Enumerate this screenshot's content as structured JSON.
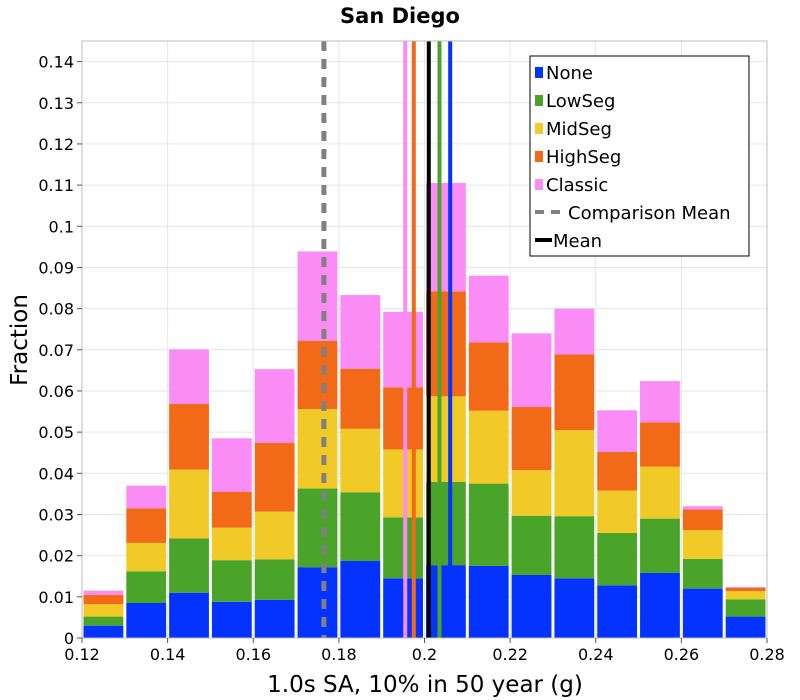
{
  "chart_data": {
    "type": "bar",
    "stacked": true,
    "title": "San Diego",
    "xlabel": "1.0s SA, 10% in 50 year (g)",
    "ylabel": "Fraction",
    "xlim": [
      0.12,
      0.28
    ],
    "ylim": [
      0,
      0.145
    ],
    "grid": true,
    "legend_position": "top-right",
    "x_ticks": [
      "0.12",
      "0.14",
      "0.16",
      "0.18",
      "0.2",
      "0.22",
      "0.24",
      "0.26",
      "0.28"
    ],
    "y_ticks": [
      "0",
      "0.01",
      "0.02",
      "0.03",
      "0.04",
      "0.05",
      "0.06",
      "0.07",
      "0.08",
      "0.09",
      "0.1",
      "0.11",
      "0.12",
      "0.13",
      "0.14"
    ],
    "bin_width": 0.01,
    "bin_centers": [
      0.125,
      0.135,
      0.145,
      0.155,
      0.165,
      0.175,
      0.185,
      0.195,
      0.205,
      0.215,
      0.225,
      0.235,
      0.245,
      0.255,
      0.265,
      0.275
    ],
    "series": [
      {
        "name": "None",
        "color": "#0433ff",
        "values": [
          0.003,
          0.0085,
          0.011,
          0.0088,
          0.0093,
          0.0172,
          0.0187,
          0.0145,
          0.0177,
          0.0175,
          0.0153,
          0.0145,
          0.0128,
          0.0158,
          0.012,
          0.0052
        ]
      },
      {
        "name": "LowSeg",
        "color": "#4aa42a",
        "values": [
          0.0022,
          0.0077,
          0.0132,
          0.0101,
          0.0098,
          0.0191,
          0.0167,
          0.0148,
          0.0202,
          0.02,
          0.0144,
          0.0151,
          0.0127,
          0.0132,
          0.0072,
          0.0042
        ]
      },
      {
        "name": "MidSeg",
        "color": "#f2ca27",
        "values": [
          0.003,
          0.0069,
          0.0167,
          0.0079,
          0.0116,
          0.0193,
          0.0154,
          0.0165,
          0.0208,
          0.0177,
          0.0111,
          0.0209,
          0.0103,
          0.0126,
          0.007,
          0.002
        ]
      },
      {
        "name": "HighSeg",
        "color": "#f26918",
        "values": [
          0.0023,
          0.0084,
          0.016,
          0.0087,
          0.0167,
          0.0166,
          0.0146,
          0.0151,
          0.0255,
          0.0166,
          0.0153,
          0.0184,
          0.0094,
          0.0108,
          0.005,
          0.0008
        ]
      },
      {
        "name": "Classic",
        "color": "#fb8cf6",
        "values": [
          0.001,
          0.0055,
          0.0132,
          0.013,
          0.0179,
          0.0217,
          0.0179,
          0.0183,
          0.0263,
          0.0162,
          0.0179,
          0.0111,
          0.0101,
          0.01,
          0.0008,
          0.0002
        ]
      }
    ],
    "vertical_lines": [
      {
        "name": "Comparison Mean",
        "x": 0.1765,
        "color": "#808080",
        "style": "dashed"
      },
      {
        "name": "Classic mean",
        "x": 0.1955,
        "color": "#fb8cf6",
        "style": "solid"
      },
      {
        "name": "HighSeg mean",
        "x": 0.1975,
        "color": "#f26918",
        "style": "solid"
      },
      {
        "name": "Mean",
        "x": 0.201,
        "color": "#000000",
        "style": "solid"
      },
      {
        "name": "LowSeg mean",
        "x": 0.2035,
        "color": "#4aa42a",
        "style": "solid"
      },
      {
        "name": "None mean",
        "x": 0.206,
        "color": "#0433ff",
        "style": "solid"
      }
    ],
    "legend": [
      {
        "label": "None",
        "color": "#0433ff",
        "kind": "box"
      },
      {
        "label": "LowSeg",
        "color": "#4aa42a",
        "kind": "box"
      },
      {
        "label": "MidSeg",
        "color": "#f2ca27",
        "kind": "box"
      },
      {
        "label": "HighSeg",
        "color": "#f26918",
        "kind": "box"
      },
      {
        "label": "Classic",
        "color": "#fb8cf6",
        "kind": "box"
      },
      {
        "label": "Comparison Mean",
        "color": "#808080",
        "kind": "dashed"
      },
      {
        "label": "Mean",
        "color": "#000000",
        "kind": "line"
      }
    ]
  }
}
